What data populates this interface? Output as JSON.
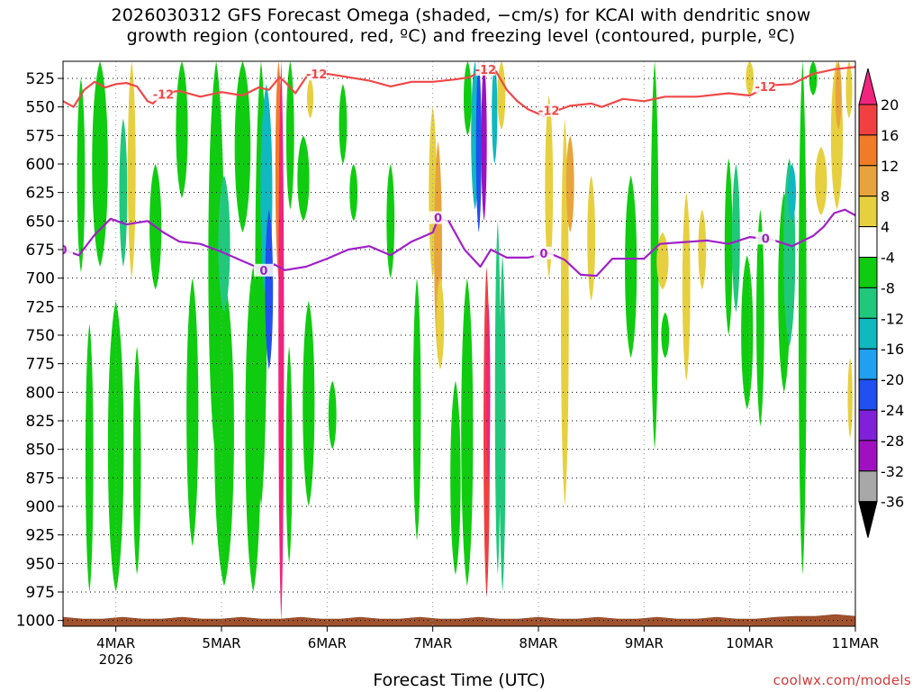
{
  "title": {
    "line1": "2026030312 GFS Forecast Omega (shaded, −cm/s) for KCAI with dendritic snow",
    "line2": "growth region (contoured, red, ºC) and freezing level (contoured, purple, ºC)"
  },
  "credit": "coolwx.com/models",
  "chart_data": {
    "type": "heatmap",
    "xlabel": "Forecast Time (UTC)",
    "ylabel": "",
    "x_ticks": [
      "4MAR",
      "5MAR",
      "6MAR",
      "7MAR",
      "8MAR",
      "9MAR",
      "10MAR",
      "11MAR"
    ],
    "x_year": "2026",
    "y_ticks": [
      525,
      550,
      575,
      600,
      625,
      650,
      675,
      700,
      725,
      750,
      775,
      800,
      825,
      850,
      875,
      900,
      925,
      950,
      975,
      1000
    ],
    "ylim": [
      1005,
      510
    ],
    "xlim_days": [
      3.5,
      11.0
    ],
    "grid": "dotted",
    "colorbar": {
      "labels": [
        "20",
        "16",
        "12",
        "8",
        "4",
        "-4",
        "-8",
        "-12",
        "-16",
        "-20",
        "-24",
        "-28",
        "-32",
        "-36"
      ],
      "levels": [
        24,
        20,
        16,
        12,
        8,
        4,
        -4,
        -8,
        -12,
        -16,
        -20,
        -24,
        -28,
        -32,
        -36
      ],
      "colors": [
        "#f0247e",
        "#f04040",
        "#f07c28",
        "#e8a43c",
        "#e6d040",
        "#ffffff",
        "#10cc10",
        "#20c87c",
        "#10b8c0",
        "#20a0f0",
        "#2050f0",
        "#8020d8",
        "#a010c0",
        "#a8a8a8"
      ]
    },
    "contours": [
      {
        "label": "-12",
        "color": "#f04848",
        "points": [
          [
            3.5,
            545
          ],
          [
            3.6,
            550
          ],
          [
            3.7,
            535
          ],
          [
            3.8,
            528
          ],
          [
            3.9,
            533
          ],
          [
            4.0,
            530
          ],
          [
            4.1,
            529
          ],
          [
            4.2,
            532
          ],
          [
            4.3,
            545
          ],
          [
            4.35,
            547
          ],
          [
            4.45,
            538
          ],
          [
            4.6,
            536
          ],
          [
            4.8,
            541
          ],
          [
            5.0,
            537
          ],
          [
            5.2,
            540
          ],
          [
            5.35,
            533
          ],
          [
            5.45,
            535
          ],
          [
            5.55,
            524
          ],
          [
            5.6,
            528
          ],
          [
            5.7,
            538
          ],
          [
            5.8,
            524
          ],
          [
            5.9,
            519
          ],
          [
            6.0,
            521
          ],
          [
            6.2,
            524
          ],
          [
            6.4,
            527
          ],
          [
            6.6,
            532
          ],
          [
            6.8,
            528
          ],
          [
            7.0,
            528
          ],
          [
            7.2,
            526
          ],
          [
            7.35,
            524
          ],
          [
            7.45,
            519
          ],
          [
            7.5,
            517
          ],
          [
            7.6,
            519
          ],
          [
            7.7,
            535
          ],
          [
            7.8,
            545
          ],
          [
            7.9,
            552
          ],
          [
            8.05,
            558
          ],
          [
            8.15,
            554
          ],
          [
            8.3,
            549
          ],
          [
            8.5,
            547
          ],
          [
            8.6,
            550
          ],
          [
            8.8,
            543
          ],
          [
            9.0,
            545
          ],
          [
            9.2,
            541
          ],
          [
            9.5,
            541
          ],
          [
            9.8,
            538
          ],
          [
            10.0,
            540
          ],
          [
            10.2,
            531
          ],
          [
            10.4,
            530
          ],
          [
            10.6,
            521
          ],
          [
            10.8,
            517
          ],
          [
            11.0,
            515
          ]
        ],
        "labels_at": [
          [
            4.45,
            539
          ],
          [
            5.9,
            521
          ],
          [
            7.5,
            517
          ],
          [
            8.1,
            553
          ],
          [
            10.15,
            532
          ]
        ]
      },
      {
        "label": "0",
        "color": "#a020c8",
        "points": [
          [
            3.5,
            675
          ],
          [
            3.65,
            680
          ],
          [
            3.8,
            662
          ],
          [
            3.95,
            648
          ],
          [
            4.1,
            653
          ],
          [
            4.3,
            650
          ],
          [
            4.45,
            660
          ],
          [
            4.6,
            668
          ],
          [
            4.8,
            670
          ],
          [
            5.0,
            677
          ],
          [
            5.2,
            685
          ],
          [
            5.4,
            693
          ],
          [
            5.5,
            688
          ],
          [
            5.6,
            693
          ],
          [
            5.8,
            690
          ],
          [
            6.0,
            683
          ],
          [
            6.2,
            675
          ],
          [
            6.4,
            672
          ],
          [
            6.6,
            680
          ],
          [
            6.8,
            668
          ],
          [
            7.0,
            660
          ],
          [
            7.05,
            648
          ],
          [
            7.15,
            650
          ],
          [
            7.3,
            675
          ],
          [
            7.45,
            690
          ],
          [
            7.55,
            675
          ],
          [
            7.7,
            682
          ],
          [
            7.9,
            682
          ],
          [
            8.1,
            678
          ],
          [
            8.25,
            684
          ],
          [
            8.4,
            697
          ],
          [
            8.55,
            698
          ],
          [
            8.7,
            683
          ],
          [
            9.0,
            683
          ],
          [
            9.15,
            670
          ],
          [
            9.3,
            669
          ],
          [
            9.6,
            667
          ],
          [
            9.8,
            670
          ],
          [
            10.0,
            664
          ],
          [
            10.2,
            666
          ],
          [
            10.4,
            672
          ],
          [
            10.6,
            663
          ],
          [
            10.7,
            655
          ],
          [
            10.8,
            643
          ],
          [
            10.9,
            640
          ],
          [
            11.0,
            645
          ]
        ],
        "labels_at": [
          [
            3.5,
            675
          ],
          [
            5.4,
            693
          ],
          [
            7.05,
            647
          ],
          [
            8.05,
            678
          ],
          [
            10.15,
            665
          ]
        ]
      }
    ],
    "omega_regions": [
      {
        "x": [
          3.62,
          3.72
        ],
        "y": [
          525,
          695
        ],
        "value": -6
      },
      {
        "x": [
          3.7,
          3.8
        ],
        "y": [
          740,
          975
        ],
        "value": -6
      },
      {
        "x": [
          3.75,
          3.95
        ],
        "y": [
          510,
          690
        ],
        "value": -6
      },
      {
        "x": [
          3.9,
          4.1
        ],
        "y": [
          720,
          975
        ],
        "value": -6
      },
      {
        "x": [
          4.02,
          4.12
        ],
        "y": [
          560,
          690
        ],
        "value": -10
      },
      {
        "x": [
          4.1,
          4.2
        ],
        "y": [
          510,
          700
        ],
        "value": 6
      },
      {
        "x": [
          4.15,
          4.25
        ],
        "y": [
          760,
          960
        ],
        "value": -6
      },
      {
        "x": [
          4.3,
          4.45
        ],
        "y": [
          600,
          710
        ],
        "value": -6
      },
      {
        "x": [
          4.55,
          4.7
        ],
        "y": [
          510,
          630
        ],
        "value": -6
      },
      {
        "x": [
          4.65,
          4.8
        ],
        "y": [
          700,
          935
        ],
        "value": -6
      },
      {
        "x": [
          4.85,
          5.05
        ],
        "y": [
          510,
          860
        ],
        "value": -6
      },
      {
        "x": [
          4.9,
          5.15
        ],
        "y": [
          700,
          970
        ],
        "value": -6
      },
      {
        "x": [
          4.95,
          5.1
        ],
        "y": [
          610,
          730
        ],
        "value": -10
      },
      {
        "x": [
          5.1,
          5.3
        ],
        "y": [
          510,
          660
        ],
        "value": -6
      },
      {
        "x": [
          5.2,
          5.4
        ],
        "y": [
          690,
          975
        ],
        "value": -6
      },
      {
        "x": [
          5.3,
          5.45
        ],
        "y": [
          510,
          900
        ],
        "value": -6
      },
      {
        "x": [
          5.35,
          5.5
        ],
        "y": [
          530,
          720
        ],
        "value": -14
      },
      {
        "x": [
          5.4,
          5.5
        ],
        "y": [
          640,
          780
        ],
        "value": -22
      },
      {
        "x": [
          5.5,
          5.58
        ],
        "y": [
          510,
          700
        ],
        "value": 14
      },
      {
        "x": [
          5.53,
          5.6
        ],
        "y": [
          510,
          1000
        ],
        "value": 22
      },
      {
        "x": [
          5.6,
          5.68
        ],
        "y": [
          760,
          950
        ],
        "value": -6
      },
      {
        "x": [
          5.6,
          5.7
        ],
        "y": [
          510,
          640
        ],
        "value": -6
      },
      {
        "x": [
          5.7,
          5.85
        ],
        "y": [
          575,
          650
        ],
        "value": -6
      },
      {
        "x": [
          5.75,
          5.9
        ],
        "y": [
          720,
          900
        ],
        "value": -6
      },
      {
        "x": [
          5.8,
          5.88
        ],
        "y": [
          525,
          560
        ],
        "value": 6
      },
      {
        "x": [
          6.0,
          6.1
        ],
        "y": [
          790,
          850
        ],
        "value": -6
      },
      {
        "x": [
          6.1,
          6.2
        ],
        "y": [
          530,
          600
        ],
        "value": -6
      },
      {
        "x": [
          6.2,
          6.3
        ],
        "y": [
          600,
          650
        ],
        "value": -6
      },
      {
        "x": [
          6.55,
          6.65
        ],
        "y": [
          600,
          700
        ],
        "value": -6
      },
      {
        "x": [
          6.8,
          6.9
        ],
        "y": [
          700,
          930
        ],
        "value": -6
      },
      {
        "x": [
          6.95,
          7.05
        ],
        "y": [
          550,
          700
        ],
        "value": 6
      },
      {
        "x": [
          7.0,
          7.1
        ],
        "y": [
          580,
          770
        ],
        "value": 10
      },
      {
        "x": [
          7.02,
          7.12
        ],
        "y": [
          700,
          780
        ],
        "value": 6
      },
      {
        "x": [
          7.15,
          7.28
        ],
        "y": [
          790,
          960
        ],
        "value": -6
      },
      {
        "x": [
          7.28,
          7.38
        ],
        "y": [
          510,
          575
        ],
        "value": -6
      },
      {
        "x": [
          7.25,
          7.4
        ],
        "y": [
          700,
          970
        ],
        "value": -6
      },
      {
        "x": [
          7.35,
          7.45
        ],
        "y": [
          510,
          640
        ],
        "value": -14
      },
      {
        "x": [
          7.4,
          7.47
        ],
        "y": [
          510,
          660
        ],
        "value": -22
      },
      {
        "x": [
          7.45,
          7.52
        ],
        "y": [
          510,
          650
        ],
        "value": -30
      },
      {
        "x": [
          7.47,
          7.55
        ],
        "y": [
          690,
          980
        ],
        "value": 18
      },
      {
        "x": [
          7.5,
          7.55
        ],
        "y": [
          720,
          880
        ],
        "value": 24
      },
      {
        "x": [
          7.55,
          7.62
        ],
        "y": [
          510,
          600
        ],
        "value": -14
      },
      {
        "x": [
          7.58,
          7.65
        ],
        "y": [
          650,
          960
        ],
        "value": -8
      },
      {
        "x": [
          7.62,
          7.7
        ],
        "y": [
          680,
          975
        ],
        "value": -10
      },
      {
        "x": [
          7.6,
          7.7
        ],
        "y": [
          510,
          570
        ],
        "value": 6
      },
      {
        "x": [
          8.05,
          8.15
        ],
        "y": [
          540,
          700
        ],
        "value": 6
      },
      {
        "x": [
          8.2,
          8.3
        ],
        "y": [
          560,
          900
        ],
        "value": 6
      },
      {
        "x": [
          8.25,
          8.35
        ],
        "y": [
          575,
          660
        ],
        "value": 12
      },
      {
        "x": [
          8.45,
          8.55
        ],
        "y": [
          610,
          720
        ],
        "value": 6
      },
      {
        "x": [
          8.8,
          8.95
        ],
        "y": [
          610,
          770
        ],
        "value": -6
      },
      {
        "x": [
          9.05,
          9.15
        ],
        "y": [
          510,
          850
        ],
        "value": -6
      },
      {
        "x": [
          9.1,
          9.25
        ],
        "y": [
          660,
          710
        ],
        "value": 6
      },
      {
        "x": [
          9.15,
          9.25
        ],
        "y": [
          730,
          770
        ],
        "value": -6
      },
      {
        "x": [
          9.35,
          9.45
        ],
        "y": [
          625,
          790
        ],
        "value": 6
      },
      {
        "x": [
          9.5,
          9.6
        ],
        "y": [
          640,
          710
        ],
        "value": 6
      },
      {
        "x": [
          9.75,
          9.85
        ],
        "y": [
          595,
          750
        ],
        "value": -6
      },
      {
        "x": [
          9.82,
          9.92
        ],
        "y": [
          600,
          730
        ],
        "value": -10
      },
      {
        "x": [
          9.9,
          10.05
        ],
        "y": [
          680,
          815
        ],
        "value": -6
      },
      {
        "x": [
          9.95,
          10.05
        ],
        "y": [
          510,
          540
        ],
        "value": 6
      },
      {
        "x": [
          10.05,
          10.15
        ],
        "y": [
          640,
          830
        ],
        "value": -6
      },
      {
        "x": [
          10.25,
          10.4
        ],
        "y": [
          625,
          800
        ],
        "value": -6
      },
      {
        "x": [
          10.3,
          10.45
        ],
        "y": [
          595,
          760
        ],
        "value": -10
      },
      {
        "x": [
          10.35,
          10.45
        ],
        "y": [
          600,
          650
        ],
        "value": -14
      },
      {
        "x": [
          10.45,
          10.55
        ],
        "y": [
          510,
          960
        ],
        "value": -6
      },
      {
        "x": [
          10.55,
          10.65
        ],
        "y": [
          510,
          540
        ],
        "value": -6
      },
      {
        "x": [
          10.6,
          10.75
        ],
        "y": [
          585,
          645
        ],
        "value": 6
      },
      {
        "x": [
          10.75,
          10.9
        ],
        "y": [
          510,
          640
        ],
        "value": 6
      },
      {
        "x": [
          10.8,
          10.88
        ],
        "y": [
          510,
          570
        ],
        "value": 12
      },
      {
        "x": [
          10.9,
          10.98
        ],
        "y": [
          510,
          560
        ],
        "value": 6
      },
      {
        "x": [
          10.92,
          10.98
        ],
        "y": [
          770,
          840
        ],
        "value": 6
      }
    ]
  }
}
